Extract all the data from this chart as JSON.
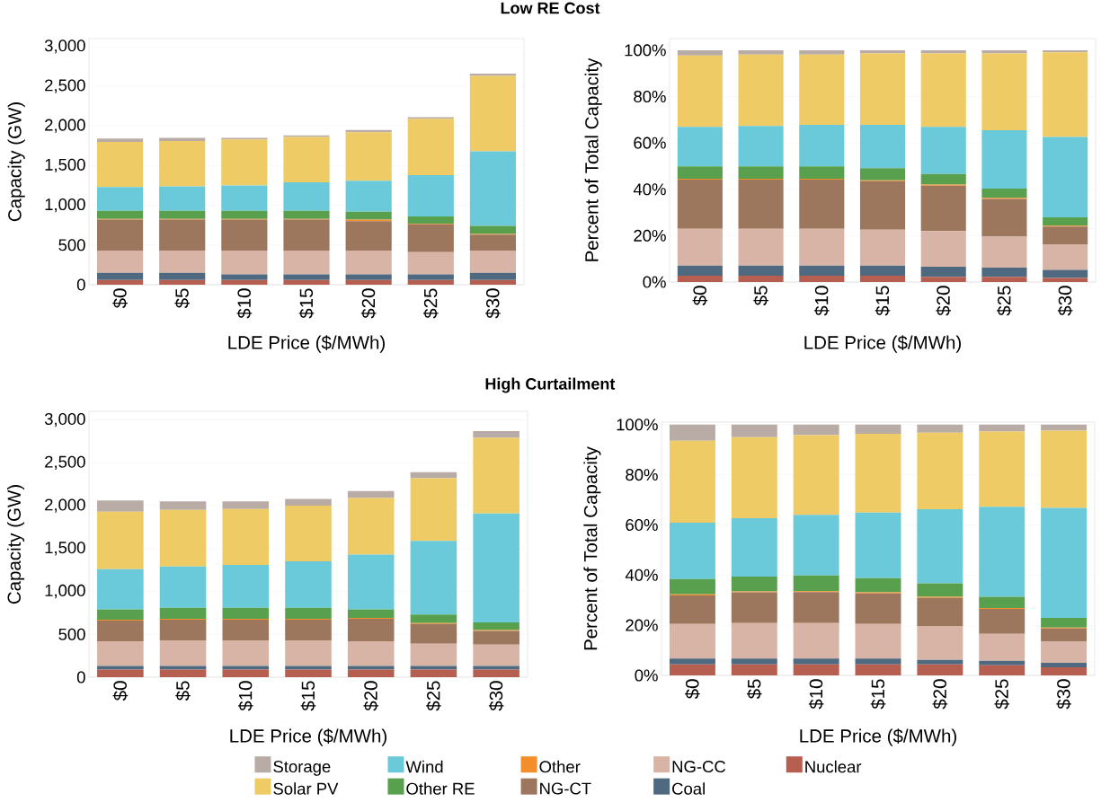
{
  "chart_data": [
    {
      "type": "bar",
      "stacked": true,
      "title": "Low RE Cost",
      "xlabel": "LDE Price ($/MWh)",
      "ylabel": "Capacity (GW)",
      "categories": [
        "$0",
        "$5",
        "$10",
        "$15",
        "$20",
        "$25",
        "$30"
      ],
      "ylim": [
        0,
        3100
      ],
      "yticks": [
        0,
        500,
        {
          "value": 1000,
          "label": "1,000"
        },
        {
          "value": 1500,
          "label": "1,500"
        },
        {
          "value": 2000,
          "label": "2,000"
        },
        {
          "value": 2500,
          "label": "2,500"
        },
        {
          "value": 3000,
          "label": "3,000"
        }
      ],
      "grid": "y",
      "series": [
        {
          "color": "#b65f51",
          "values": [
            60,
            60,
            60,
            60,
            60,
            60,
            60
          ]
        },
        {
          "color": "#4f6980",
          "values": [
            90,
            90,
            70,
            70,
            70,
            70,
            90
          ]
        },
        {
          "color": "#d7b4a5",
          "values": [
            280,
            280,
            300,
            300,
            300,
            280,
            280
          ]
        },
        {
          "color": "#9c765d",
          "values": [
            390,
            390,
            390,
            390,
            370,
            350,
            200
          ]
        },
        {
          "color": "#f28e2b",
          "values": [
            10,
            10,
            10,
            10,
            20,
            10,
            10
          ]
        },
        {
          "color": "#59a04e",
          "values": [
            100,
            100,
            100,
            100,
            100,
            90,
            100
          ]
        },
        {
          "color": "#6bcad9",
          "values": [
            300,
            310,
            320,
            360,
            390,
            520,
            940
          ]
        },
        {
          "color": "#eecb64",
          "values": [
            570,
            570,
            580,
            570,
            610,
            710,
            950
          ]
        },
        {
          "color": "#b9aca6",
          "values": [
            40,
            40,
            20,
            20,
            30,
            20,
            30
          ]
        }
      ]
    },
    {
      "type": "bar",
      "stacked": true,
      "xlabel": "LDE Price ($/MWh)",
      "ylabel": "Percent of Total Capacity",
      "categories": [
        "$0",
        "$5",
        "$10",
        "$15",
        "$20",
        "$25",
        "$30"
      ],
      "ylim": [
        0,
        105
      ],
      "yticks": [
        {
          "value": 0,
          "label": "0%"
        },
        {
          "value": 20,
          "label": "20%"
        },
        {
          "value": 40,
          "label": "40%"
        },
        {
          "value": 60,
          "label": "60%"
        },
        {
          "value": 80,
          "label": "80%"
        },
        {
          "value": 100,
          "label": "100%"
        }
      ],
      "grid": "y",
      "series": [
        {
          "color": "#b65f51",
          "values": [
            2.7,
            2.7,
            2.7,
            2.7,
            2.2,
            2.2,
            1.7
          ]
        },
        {
          "color": "#4f6980",
          "values": [
            4.4,
            4.4,
            4.4,
            4.4,
            4.4,
            4.0,
            3.5
          ]
        },
        {
          "color": "#d7b4a5",
          "values": [
            15.9,
            15.9,
            15.9,
            15.5,
            15.4,
            13.4,
            11.1
          ]
        },
        {
          "color": "#9c765d",
          "values": [
            21.2,
            21.2,
            21.2,
            20.9,
            19.6,
            16.2,
            7.6
          ]
        },
        {
          "color": "#f28e2b",
          "values": [
            0.4,
            0.4,
            0.4,
            0.4,
            0.4,
            0.5,
            0.4
          ]
        },
        {
          "color": "#59a04e",
          "values": [
            5.3,
            5.3,
            5.3,
            5.2,
            4.6,
            4.0,
            3.6
          ]
        },
        {
          "color": "#6bcad9",
          "values": [
            17.0,
            17.4,
            17.9,
            18.7,
            20.3,
            25.2,
            34.7
          ]
        },
        {
          "color": "#eecb64",
          "values": [
            30.8,
            30.8,
            30.3,
            30.8,
            31.7,
            33.1,
            36.5
          ]
        },
        {
          "color": "#b9aca6",
          "values": [
            2.3,
            1.9,
            1.9,
            1.4,
            1.4,
            1.4,
            0.9
          ]
        }
      ]
    },
    {
      "type": "bar",
      "stacked": true,
      "title": "High Curtailment",
      "xlabel": "LDE Price ($/MWh)",
      "ylabel": "Capacity (GW)",
      "categories": [
        "$0",
        "$5",
        "$10",
        "$15",
        "$20",
        "$25",
        "$30"
      ],
      "ylim": [
        0,
        3100
      ],
      "yticks": [
        0,
        500,
        {
          "value": 1000,
          "label": "1,000"
        },
        {
          "value": 1500,
          "label": "1,500"
        },
        {
          "value": 2000,
          "label": "2,000"
        },
        {
          "value": 2500,
          "label": "2,500"
        },
        {
          "value": 3000,
          "label": "3,000"
        }
      ],
      "grid": "y",
      "legend": "bottom",
      "series": [
        {
          "name": "Nuclear",
          "color": "#b65f51",
          "values": [
            90,
            90,
            90,
            90,
            90,
            90,
            90
          ]
        },
        {
          "name": "Coal",
          "color": "#4f6980",
          "values": [
            40,
            40,
            40,
            40,
            40,
            40,
            40
          ]
        },
        {
          "name": "NG-CC",
          "color": "#d7b4a5",
          "values": [
            290,
            300,
            300,
            300,
            290,
            260,
            250
          ]
        },
        {
          "name": "NG-CT",
          "color": "#9c765d",
          "values": [
            240,
            240,
            240,
            240,
            260,
            230,
            160
          ]
        },
        {
          "name": "Other",
          "color": "#f28e2b",
          "values": [
            10,
            10,
            10,
            10,
            10,
            10,
            10
          ]
        },
        {
          "name": "Other RE",
          "color": "#59a04e",
          "values": [
            120,
            130,
            130,
            130,
            100,
            100,
            90
          ]
        },
        {
          "name": "Wind",
          "color": "#6bcad9",
          "values": [
            470,
            480,
            500,
            540,
            640,
            860,
            1270
          ]
        },
        {
          "name": "Solar PV",
          "color": "#eecb64",
          "values": [
            670,
            660,
            650,
            650,
            660,
            730,
            880
          ]
        },
        {
          "name": "Storage",
          "color": "#b9aca6",
          "values": [
            130,
            100,
            90,
            80,
            80,
            70,
            80
          ]
        }
      ]
    },
    {
      "type": "bar",
      "stacked": true,
      "xlabel": "LDE Price ($/MWh)",
      "ylabel": "Percent of Total Capacity",
      "categories": [
        "$0",
        "$5",
        "$10",
        "$15",
        "$20",
        "$25",
        "$30"
      ],
      "ylim": [
        0,
        101
      ],
      "yticks": [
        {
          "value": 0,
          "label": "0%"
        },
        {
          "value": 20,
          "label": "20%"
        },
        {
          "value": 40,
          "label": "40%"
        },
        {
          "value": 60,
          "label": "60%"
        },
        {
          "value": 80,
          "label": "80%"
        },
        {
          "value": 100,
          "label": "100%"
        }
      ],
      "grid": "y",
      "series": [
        {
          "color": "#b65f51",
          "values": [
            4.4,
            4.4,
            4.4,
            4.4,
            4.4,
            4.0,
            3.2
          ]
        },
        {
          "color": "#4f6980",
          "values": [
            2.3,
            2.3,
            2.3,
            2.3,
            1.8,
            1.8,
            1.8
          ]
        },
        {
          "color": "#d7b4a5",
          "values": [
            13.8,
            14.2,
            14.2,
            13.8,
            13.5,
            10.8,
            8.4
          ]
        },
        {
          "color": "#9c765d",
          "values": [
            11.4,
            12.2,
            12.3,
            12.2,
            11.2,
            9.9,
            5.3
          ]
        },
        {
          "color": "#f28e2b",
          "values": [
            0.4,
            0.4,
            0.4,
            0.4,
            0.4,
            0.4,
            0.4
          ]
        },
        {
          "color": "#59a04e",
          "values": [
            6.1,
            5.9,
            6.2,
            5.7,
            5.4,
            4.4,
            3.8
          ]
        },
        {
          "color": "#6bcad9",
          "values": [
            22.5,
            23.3,
            24.2,
            26.1,
            29.6,
            35.9,
            43.9
          ]
        },
        {
          "color": "#eecb64",
          "values": [
            32.7,
            32.3,
            31.8,
            31.4,
            30.5,
            30.0,
            30.8
          ]
        },
        {
          "color": "#b9aca6",
          "values": [
            6.4,
            5.0,
            4.2,
            3.7,
            3.2,
            2.8,
            2.4
          ]
        }
      ]
    }
  ]
}
